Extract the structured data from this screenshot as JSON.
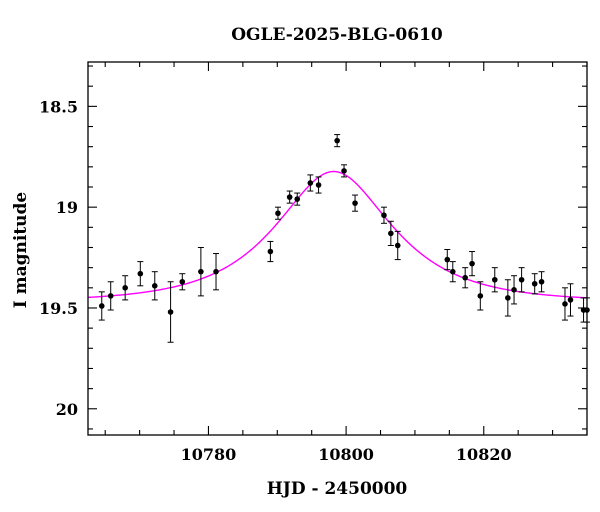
{
  "chart_data": {
    "type": "scatter",
    "title": "OGLE-2025-BLG-0610",
    "xlabel": "HJD - 2450000",
    "ylabel": "I magnitude",
    "xlim": [
      10762.5,
      10835
    ],
    "ylim": [
      20.13,
      18.28
    ],
    "y_inverted": true,
    "xticks": [
      10780,
      10800,
      10820
    ],
    "yticks": [
      18.5,
      19,
      19.5,
      20
    ],
    "ytick_labels": [
      "18.5",
      "19",
      "19.5",
      "20"
    ],
    "grid": false,
    "model_color": "#ff00ff",
    "model": {
      "name": "",
      "t0": 10798.2,
      "tE": 13.0,
      "u0": 0.63,
      "baseline_mag": 19.47
    },
    "points": [
      {
        "x": 10764.5,
        "y": 19.49,
        "err": 0.07
      },
      {
        "x": 10765.8,
        "y": 19.44,
        "err": 0.07
      },
      {
        "x": 10767.9,
        "y": 19.4,
        "err": 0.06
      },
      {
        "x": 10770.1,
        "y": 19.33,
        "err": 0.06
      },
      {
        "x": 10772.2,
        "y": 19.39,
        "err": 0.07
      },
      {
        "x": 10774.5,
        "y": 19.52,
        "err": 0.15
      },
      {
        "x": 10776.2,
        "y": 19.37,
        "err": 0.04
      },
      {
        "x": 10778.9,
        "y": 19.32,
        "err": 0.12
      },
      {
        "x": 10781.1,
        "y": 19.32,
        "err": 0.09
      },
      {
        "x": 10789.0,
        "y": 19.22,
        "err": 0.05
      },
      {
        "x": 10790.1,
        "y": 19.03,
        "err": 0.03
      },
      {
        "x": 10791.8,
        "y": 18.95,
        "err": 0.03
      },
      {
        "x": 10792.9,
        "y": 18.96,
        "err": 0.03
      },
      {
        "x": 10794.8,
        "y": 18.88,
        "err": 0.04
      },
      {
        "x": 10796.0,
        "y": 18.89,
        "err": 0.04
      },
      {
        "x": 10798.7,
        "y": 18.67,
        "err": 0.03
      },
      {
        "x": 10799.7,
        "y": 18.82,
        "err": 0.03
      },
      {
        "x": 10801.3,
        "y": 18.98,
        "err": 0.04
      },
      {
        "x": 10805.5,
        "y": 19.04,
        "err": 0.04
      },
      {
        "x": 10806.5,
        "y": 19.13,
        "err": 0.06
      },
      {
        "x": 10807.5,
        "y": 19.19,
        "err": 0.07
      },
      {
        "x": 10814.7,
        "y": 19.26,
        "err": 0.05
      },
      {
        "x": 10815.5,
        "y": 19.32,
        "err": 0.05
      },
      {
        "x": 10817.3,
        "y": 19.35,
        "err": 0.05
      },
      {
        "x": 10818.3,
        "y": 19.28,
        "err": 0.06
      },
      {
        "x": 10819.5,
        "y": 19.44,
        "err": 0.07
      },
      {
        "x": 10821.6,
        "y": 19.36,
        "err": 0.06
      },
      {
        "x": 10823.5,
        "y": 19.45,
        "err": 0.09
      },
      {
        "x": 10824.4,
        "y": 19.41,
        "err": 0.07
      },
      {
        "x": 10825.5,
        "y": 19.36,
        "err": 0.06
      },
      {
        "x": 10827.4,
        "y": 19.38,
        "err": 0.05
      },
      {
        "x": 10828.4,
        "y": 19.37,
        "err": 0.05
      },
      {
        "x": 10831.8,
        "y": 19.48,
        "err": 0.08
      },
      {
        "x": 10832.6,
        "y": 19.46,
        "err": 0.08
      },
      {
        "x": 10834.5,
        "y": 19.51,
        "err": 0.06
      },
      {
        "x": 10835.0,
        "y": 19.51,
        "err": 0.06
      }
    ]
  }
}
